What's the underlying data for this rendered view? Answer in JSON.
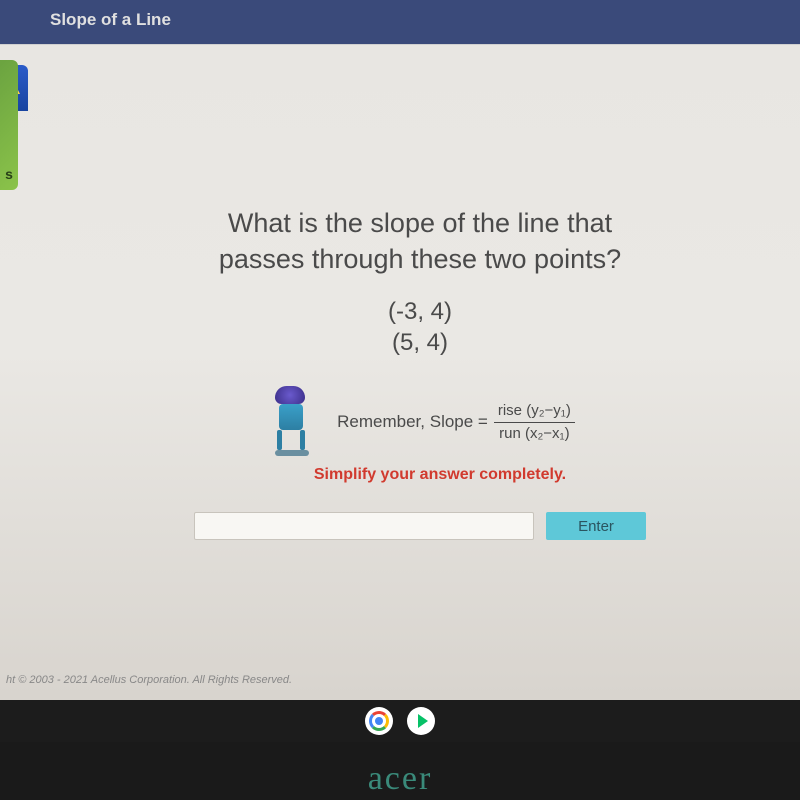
{
  "header": {
    "title": "Slope of a Line",
    "bg_color": "#3a4a7a"
  },
  "sidebar": {
    "label": "s",
    "bg_color": "#8bc34a"
  },
  "question": {
    "line1": "What is the slope of the line that",
    "line2": "passes through these two points?",
    "point1": "(-3, 4)",
    "point2": "(5, 4)"
  },
  "hint": {
    "prefix": "Remember, Slope =",
    "numerator": "rise (y₂−y₁)",
    "denominator": "run (x₂−x₁)"
  },
  "instruction": "Simplify your answer completely.",
  "instruction_color": "#d13a2e",
  "input": {
    "value": "",
    "button_label": "Enter",
    "button_color": "#5ec8d8"
  },
  "copyright": "ht © 2003 - 2021 Acellus Corporation. All Rights Reserved.",
  "taskbar": {
    "icons": [
      "chrome",
      "play-store"
    ]
  },
  "laptop_brand": "acer",
  "colors": {
    "page_bg": "#e8e6e2",
    "text": "#4a4a4a",
    "body_bg": "#1a1a1a"
  }
}
